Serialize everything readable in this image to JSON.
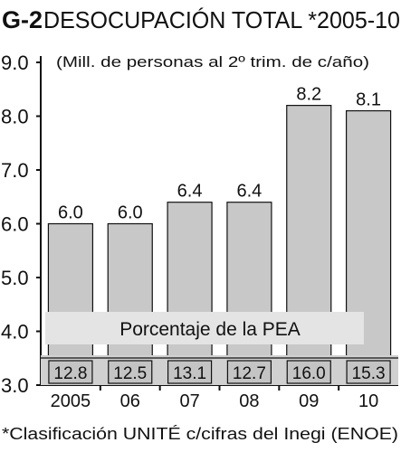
{
  "chart_data": {
    "type": "bar",
    "title_code": "G-2",
    "title": "DESOCUPACIÓN TOTAL *2005-10",
    "subtitle": "(Mill. de personas al 2º trim. de c/año)",
    "categories": [
      "2005",
      "06",
      "07",
      "08",
      "09",
      "10"
    ],
    "values": [
      6.0,
      6.0,
      6.4,
      6.4,
      8.2,
      8.1
    ],
    "value_labels": [
      "6.0",
      "6.0",
      "6.4",
      "6.4",
      "8.2",
      "8.1"
    ],
    "ylim": [
      3.0,
      9.0
    ],
    "yticks": [
      "3.0",
      "4.0",
      "5.0",
      "6.0",
      "7.0",
      "8.0",
      "9.0"
    ],
    "grid": false,
    "bar_color": "#c8c8c8",
    "pea_label": "Porcentaje de la PEA",
    "pea_values": [
      "12.8",
      "12.5",
      "13.1",
      "12.7",
      "16.0",
      "15.3"
    ],
    "footnote": "*Clasificación UNITÉ c/cifras del Inegi (ENOE)"
  }
}
